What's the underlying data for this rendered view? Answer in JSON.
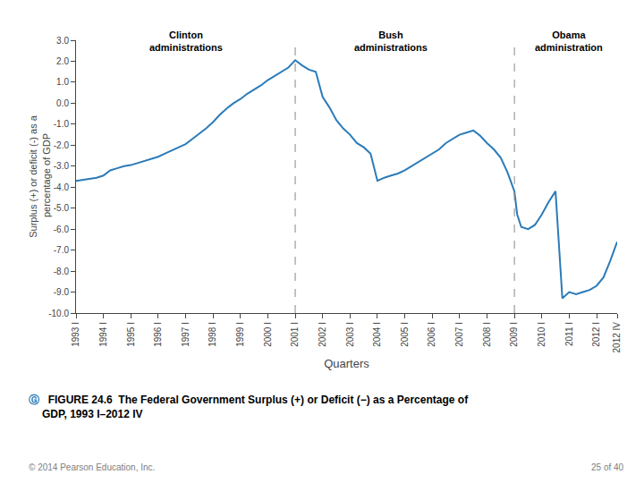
{
  "chart_data": {
    "type": "line",
    "title": "",
    "xlabel": "Quarters",
    "ylabel": "Surplus (+) or deficit (-) as a\n percentage of GDP",
    "color": "#2b7bb9",
    "grid": false,
    "xlim": [
      1993.0,
      2012.75
    ],
    "xticks": [
      {
        "value": 1993.0,
        "label": "1993 I"
      },
      {
        "value": 1994.0,
        "label": "1994 I"
      },
      {
        "value": 1995.0,
        "label": "1995 I"
      },
      {
        "value": 1996.0,
        "label": "1996 I"
      },
      {
        "value": 1997.0,
        "label": "1997 I"
      },
      {
        "value": 1998.0,
        "label": "1998 I"
      },
      {
        "value": 1999.0,
        "label": "1999 I"
      },
      {
        "value": 2000.0,
        "label": "2000 I"
      },
      {
        "value": 2001.0,
        "label": "2001 I"
      },
      {
        "value": 2002.0,
        "label": "2002 I"
      },
      {
        "value": 2003.0,
        "label": "2003 I"
      },
      {
        "value": 2004.0,
        "label": "2004 I"
      },
      {
        "value": 2005.0,
        "label": "2005 I"
      },
      {
        "value": 2006.0,
        "label": "2006 I"
      },
      {
        "value": 2007.0,
        "label": "2007 I"
      },
      {
        "value": 2008.0,
        "label": "2008 I"
      },
      {
        "value": 2009.0,
        "label": "2009 I"
      },
      {
        "value": 2010.0,
        "label": "2010 I"
      },
      {
        "value": 2011.0,
        "label": "2011 I"
      },
      {
        "value": 2012.0,
        "label": "2012 I"
      },
      {
        "value": 2012.75,
        "label": "2012 IV"
      }
    ],
    "ylim": [
      -10.0,
      3.0
    ],
    "yticks": [
      {
        "value": 3.0,
        "label": "3.0"
      },
      {
        "value": 2.0,
        "label": "2.0"
      },
      {
        "value": 1.0,
        "label": "1.0"
      },
      {
        "value": 0.0,
        "label": "0.0"
      },
      {
        "value": -1.0,
        "label": "-1.0"
      },
      {
        "value": -2.0,
        "label": "-2.0"
      },
      {
        "value": -3.0,
        "label": "-3.0"
      },
      {
        "value": -4.0,
        "label": "-4.0"
      },
      {
        "value": -5.0,
        "label": "-5.0"
      },
      {
        "value": -6.0,
        "label": "-6.0"
      },
      {
        "value": -7.0,
        "label": "-7.0"
      },
      {
        "value": -8.0,
        "label": "-8.0"
      },
      {
        "value": -9.0,
        "label": "-9.0"
      },
      {
        "value": -10.0,
        "label": "-10.0"
      }
    ],
    "x": [
      1993.0,
      1993.25,
      1993.5,
      1993.75,
      1994.0,
      1994.25,
      1994.5,
      1994.75,
      1995.0,
      1995.25,
      1995.5,
      1995.75,
      1996.0,
      1996.25,
      1996.5,
      1996.75,
      1997.0,
      1997.25,
      1997.5,
      1997.75,
      1998.0,
      1998.25,
      1998.5,
      1998.75,
      1999.0,
      1999.25,
      1999.5,
      1999.75,
      2000.0,
      2000.25,
      2000.5,
      2000.75,
      2001.0,
      2001.1,
      2001.25,
      2001.5,
      2001.75,
      2002.0,
      2002.25,
      2002.5,
      2002.75,
      2003.0,
      2003.25,
      2003.5,
      2003.75,
      2004.0,
      2004.25,
      2004.5,
      2004.75,
      2005.0,
      2005.25,
      2005.5,
      2005.75,
      2006.0,
      2006.25,
      2006.5,
      2006.75,
      2007.0,
      2007.25,
      2007.5,
      2007.75,
      2008.0,
      2008.25,
      2008.5,
      2008.75,
      2009.0,
      2009.1,
      2009.25,
      2009.5,
      2009.75,
      2010.0,
      2010.25,
      2010.5,
      2010.75,
      2011.0,
      2011.25,
      2011.5,
      2011.75,
      2012.0,
      2012.25,
      2012.5,
      2012.75
    ],
    "values": [
      -3.7,
      -3.65,
      -3.6,
      -3.55,
      -3.45,
      -3.2,
      -3.1,
      -3.0,
      -2.95,
      -2.85,
      -2.75,
      -2.65,
      -2.55,
      -2.4,
      -2.25,
      -2.1,
      -1.95,
      -1.7,
      -1.45,
      -1.2,
      -0.9,
      -0.55,
      -0.25,
      0.0,
      0.2,
      0.45,
      0.65,
      0.85,
      1.1,
      1.3,
      1.5,
      1.7,
      2.05,
      1.95,
      1.8,
      1.6,
      1.5,
      0.3,
      -0.2,
      -0.8,
      -1.2,
      -1.5,
      -1.9,
      -2.1,
      -2.4,
      -3.7,
      -3.55,
      -3.45,
      -3.35,
      -3.2,
      -3.0,
      -2.8,
      -2.6,
      -2.4,
      -2.2,
      -1.9,
      -1.7,
      -1.5,
      -1.4,
      -1.3,
      -1.55,
      -1.9,
      -2.2,
      -2.6,
      -3.3,
      -4.2,
      -5.3,
      -5.9,
      -6.0,
      -5.8,
      -5.3,
      -4.7,
      -4.2,
      -9.3,
      -9.0,
      -9.1,
      -9.0,
      -8.9,
      -8.7,
      -8.3,
      -7.5,
      -6.6
    ],
    "reference_lines": [
      2001.0,
      2009.0
    ],
    "annotations": [
      {
        "text": "Clinton\nadministrations",
        "x": 1997.0,
        "y": 2.3
      },
      {
        "text": "Bush\nadministrations",
        "x": 2004.5,
        "y": 2.3
      },
      {
        "text": "Obama\nadministration",
        "x": 2011.0,
        "y": 2.3
      }
    ],
    "caption_symbol": "Ⓖ",
    "caption": "  FIGURE 24.6  The Federal Government Surplus (+) or Deficit (−) as a Percentage of\nGDP, 1993 I–2012 IV",
    "footer_left": "© 2014 Pearson Education, Inc.",
    "footer_right": "25 of 40"
  }
}
